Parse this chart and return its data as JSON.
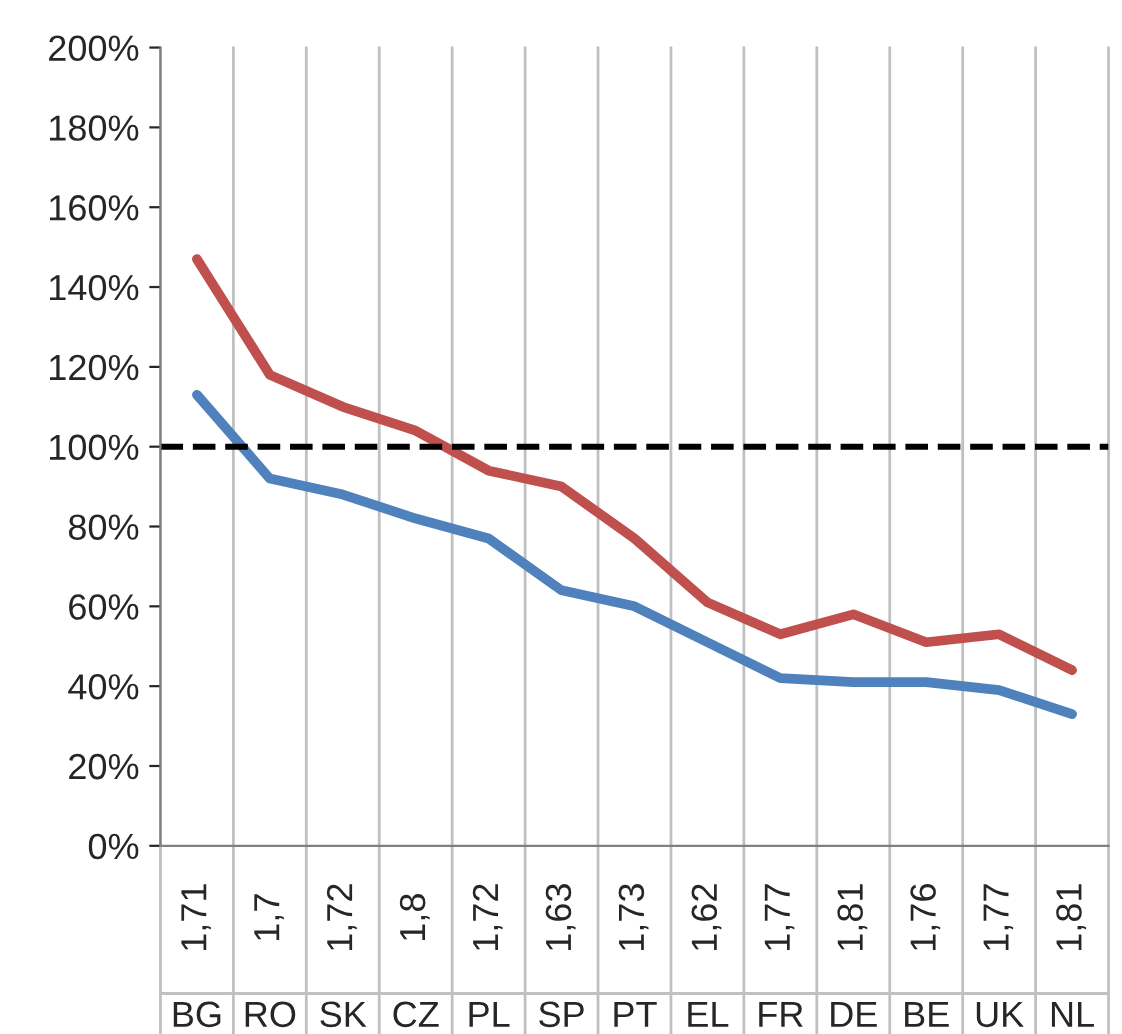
{
  "chart_data": {
    "type": "line",
    "categories": [
      "BG",
      "RO",
      "SK",
      "CZ",
      "PL",
      "SP",
      "PT",
      "EL",
      "FR",
      "DE",
      "BE",
      "UK",
      "NL"
    ],
    "series": [
      {
        "color": "#c0504d",
        "values": [
          147,
          118,
          110,
          104,
          94,
          90,
          77,
          61,
          53,
          58,
          51,
          53,
          44
        ]
      },
      {
        "color": "#4f81bd",
        "values": [
          113,
          92,
          88,
          82,
          77,
          64,
          60,
          51,
          42,
          41,
          41,
          39,
          33
        ]
      }
    ],
    "ylim": [
      0,
      200
    ],
    "yticks": [
      {
        "value": 0,
        "label": "0%"
      },
      {
        "value": 20,
        "label": "20%"
      },
      {
        "value": 40,
        "label": "40%"
      },
      {
        "value": 60,
        "label": "60%"
      },
      {
        "value": 80,
        "label": "80%"
      },
      {
        "value": 100,
        "label": "100%"
      },
      {
        "value": 120,
        "label": "120%"
      },
      {
        "value": 140,
        "label": "140%"
      },
      {
        "value": 160,
        "label": "160%"
      },
      {
        "value": 180,
        "label": "180%"
      },
      {
        "value": 200,
        "label": "200%"
      }
    ],
    "ref_lines": [
      {
        "axis": "y",
        "value": 100,
        "color": "#000000",
        "line_style": "dashed"
      }
    ],
    "annotations": [
      "1,71",
      "1,7",
      "1,72",
      "1,8",
      "1,72",
      "1,63",
      "1,73",
      "1,62",
      "1,77",
      "1,81",
      "1,76",
      "1,77",
      "1,81"
    ],
    "grid": "x",
    "legend": false,
    "marker": "none",
    "line_style": "solid"
  }
}
